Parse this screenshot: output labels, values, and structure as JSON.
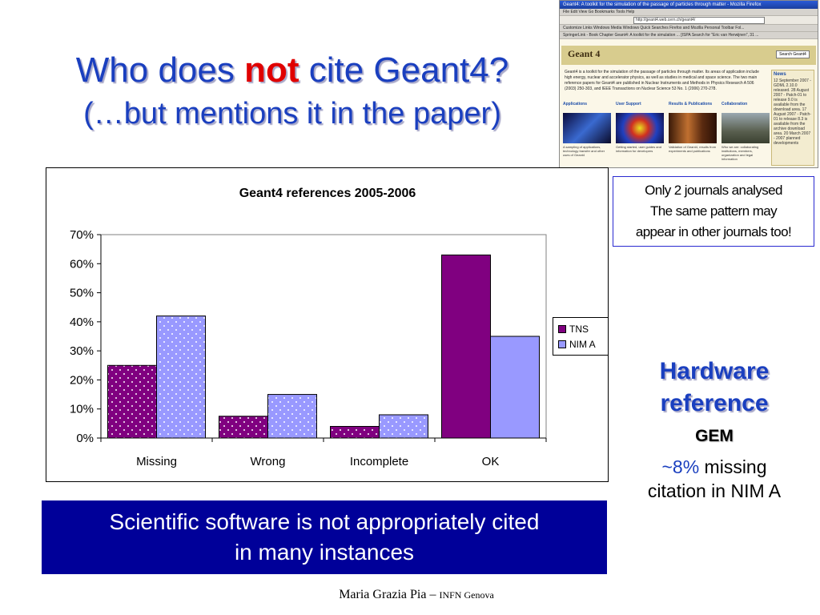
{
  "slide": {
    "title_line1_part1": "Who does ",
    "title_line1_emph": "not",
    "title_line1_part2": " cite Geant4?",
    "title_line2": "(…but mentions it in the paper)",
    "note_lines": [
      "Only 2 journals analysed",
      "The same pattern may",
      "appear in other journals too!"
    ],
    "hardware_title_line1": "Hardware",
    "hardware_title_line2": "reference",
    "gem_label": "GEM",
    "missing_pct": "~8%",
    "missing_text1": " missing",
    "missing_text2": "citation in NIM A",
    "banner_line1": "Scientific software is not appropriately cited",
    "banner_line2": "in many instances",
    "footer_name": "Maria Grazia Pia – ",
    "footer_inst": "INFN Genova",
    "colors": {
      "title": "#1a3fbf",
      "emph": "#e00000",
      "banner_bg": "#000099"
    }
  },
  "thumbnail": {
    "window_title": "Geant4: A toolkit for the simulation of the passage of particles through matter - Mozilla Firefox",
    "menu": "File  Edit  View  Go  Bookmarks  Tools  Help",
    "url": "http://geant4.web.cern.ch/geant4/",
    "bookmarks": "Customize Links   Windows Media   Windows   Quick Searches   Firefox and Mozilla   Personal Toolbar Fol...",
    "tabs": "SpringerLink - Book Chapter   Geant4: A toolkit for the simulation ...   [ISPA Search for \"Eric van Herwijnen\", 31 ...",
    "logo": "Geant 4",
    "search_button": "Search Geant4",
    "intro": "Geant4 is a toolkit for the simulation of the passage of particles through matter. Its areas of application include high energy, nuclear and accelerator physics, as well as studies in medical and space science. The two main reference papers for Geant4 are published in Nuclear Instruments and Methods in Physics Research A 506 (2003) 250-303, and IEEE Transactions on Nuclear Science 53 No. 1 (2006) 270-278.",
    "news_title": "News",
    "news_text": "12 September 2007 - GDML 2.10.0 released. 28 August 2007 - Patch-01 to release 9.0 is available from the download area. 17 August 2007 - Patch-01 to release 8.3 is available from the archive download area. 20 March 2007 - 2007 planned developments",
    "sections": [
      {
        "head": "Applications",
        "text": "A sampling of applications, technology transfer and other uses of Geant4"
      },
      {
        "head": "User Support",
        "text": "Getting started, user guides and information for developers"
      },
      {
        "head": "Results & Publications",
        "text": "Validation of Geant4, results from experiments and publications"
      },
      {
        "head": "Collaboration",
        "text": "Who we are: collaborating institutions, members, organization and legal information"
      }
    ]
  },
  "chart_data": {
    "type": "bar",
    "title": "Geant4 references 2005-2006",
    "categories": [
      "Missing",
      "Wrong",
      "Incomplete",
      "OK"
    ],
    "series": [
      {
        "name": "TNS",
        "values": [
          25,
          7.5,
          4,
          63
        ],
        "color": "#800080",
        "pattern": "dots"
      },
      {
        "name": "NIM A",
        "values": [
          42,
          15,
          8,
          35
        ],
        "color": "#9999ff",
        "pattern": "dots-top"
      }
    ],
    "ylim": [
      0,
      70
    ],
    "yticks": [
      "0%",
      "10%",
      "20%",
      "30%",
      "40%",
      "50%",
      "60%",
      "70%"
    ],
    "grid": false,
    "legend": "right",
    "xlabel": "",
    "ylabel": ""
  }
}
